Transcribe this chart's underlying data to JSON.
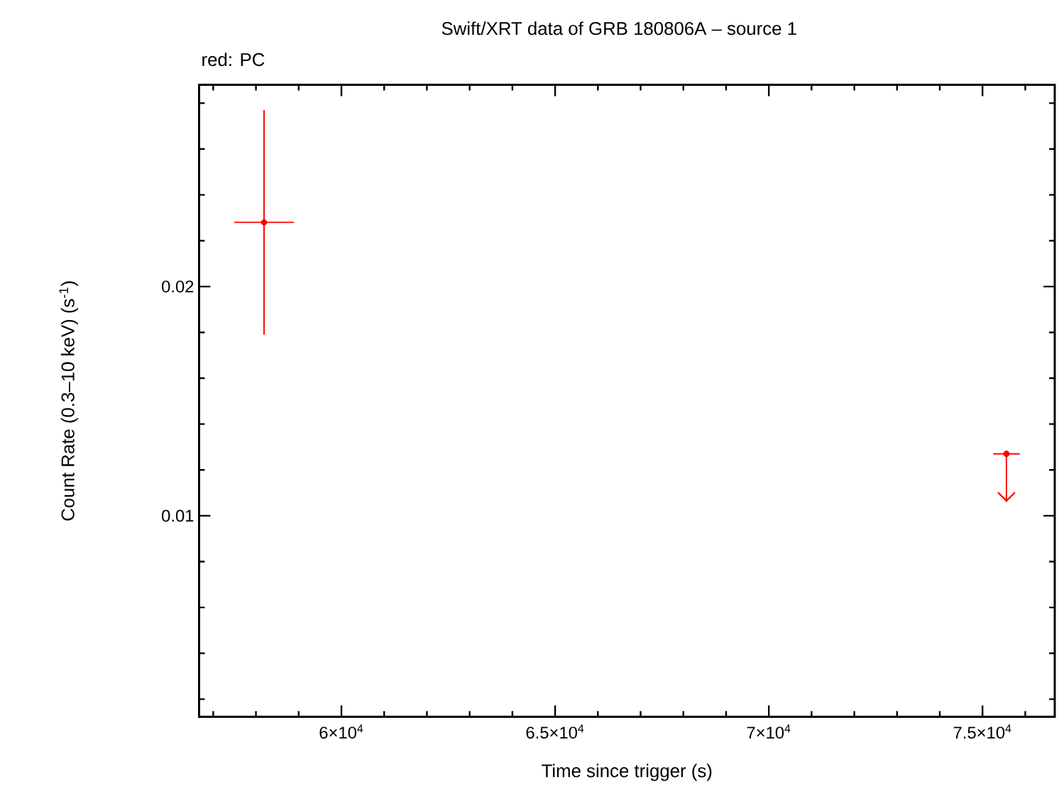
{
  "chart_data": {
    "type": "scatter",
    "title": "Swift/XRT data of GRB 180806A – source 1",
    "subtitle": "red: PC",
    "xlabel": "Time since trigger (s)",
    "ylabel": "Count Rate (0.3–10 keV) (s$^{-1}$)",
    "x": [
      58190,
      75560
    ],
    "series": [
      {
        "color": "#ff0000",
        "values": [
          0.0228,
          0.0127
        ],
        "errors": [
          0.0049,
          [
            0.0106,
            0.0127
          ]
        ],
        "xerrors": [
          700,
          310
        ]
      }
    ],
    "xlim": [
      56670,
      76690
    ],
    "ylim": [
      0.00123,
      0.0288
    ],
    "xticks": [
      {
        "value": 57000,
        "label": null
      },
      {
        "value": 58000,
        "label": null
      },
      {
        "value": 59000,
        "label": null
      },
      {
        "value": 60000,
        "label": "6×10$^{4}$"
      },
      {
        "value": 61000,
        "label": null
      },
      {
        "value": 62000,
        "label": null
      },
      {
        "value": 63000,
        "label": null
      },
      {
        "value": 64000,
        "label": null
      },
      {
        "value": 65000,
        "label": "6.5×10$^{4}$"
      },
      {
        "value": 66000,
        "label": null
      },
      {
        "value": 67000,
        "label": null
      },
      {
        "value": 68000,
        "label": null
      },
      {
        "value": 69000,
        "label": null
      },
      {
        "value": 70000,
        "label": "7×10$^{4}$"
      },
      {
        "value": 71000,
        "label": null
      },
      {
        "value": 72000,
        "label": null
      },
      {
        "value": 73000,
        "label": null
      },
      {
        "value": 74000,
        "label": null
      },
      {
        "value": 75000,
        "label": "7.5×10$^{4}$"
      },
      {
        "value": 76000,
        "label": null
      }
    ],
    "yticks": [
      {
        "value": 0.002,
        "label": null
      },
      {
        "value": 0.004,
        "label": null
      },
      {
        "value": 0.006,
        "label": null
      },
      {
        "value": 0.008,
        "label": null
      },
      0.01,
      {
        "value": 0.012,
        "label": null
      },
      {
        "value": 0.014,
        "label": null
      },
      {
        "value": 0.016,
        "label": null
      },
      {
        "value": 0.018,
        "label": null
      },
      0.02,
      {
        "value": 0.022,
        "label": null
      },
      {
        "value": 0.024,
        "label": null
      },
      {
        "value": 0.026,
        "label": null
      },
      {
        "value": 0.028,
        "label": null
      }
    ]
  }
}
